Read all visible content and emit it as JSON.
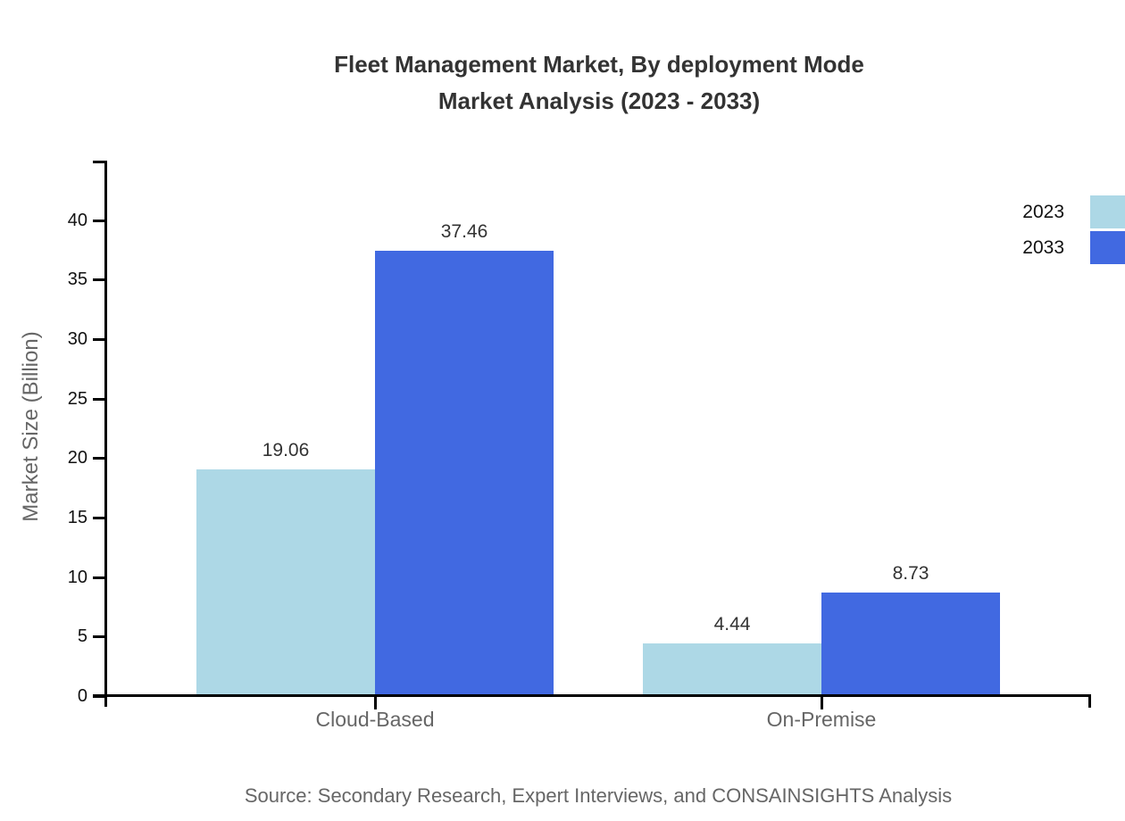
{
  "title": {
    "line1": "Fleet Management Market, By deployment Mode",
    "line2": "Market Analysis (2023 - 2033)"
  },
  "chart_data": {
    "type": "bar",
    "categories": [
      "Cloud-Based",
      "On-Premise"
    ],
    "series": [
      {
        "name": "2023",
        "color": "#ADD8E6",
        "values": [
          19.06,
          4.44
        ],
        "labels": [
          "19.06",
          "4.44"
        ]
      },
      {
        "name": "2033",
        "color": "#4169E1",
        "values": [
          37.46,
          8.73
        ],
        "labels": [
          "37.46",
          "8.73"
        ]
      }
    ],
    "title": "Fleet Management Market, By deployment Mode Market Analysis (2023 - 2033)",
    "xlabel": "",
    "ylabel": "Market Size (Billion)",
    "ylim": [
      0,
      45
    ],
    "yticks": [
      "0",
      "5",
      "10",
      "15",
      "20",
      "25",
      "30",
      "35",
      "40"
    ],
    "grid": false,
    "legend_position": "top-right",
    "value_labels_shown": true
  },
  "source": "Source: Secondary Research, Expert Interviews, and CONSAINSIGHTS Analysis",
  "colors": {
    "series_2023": "#ADD8E6",
    "series_2033": "#4169E1",
    "axis": "#000000",
    "title_text": "#333333",
    "value_label_text": "#333333",
    "category_text": "#666666",
    "source_text": "#666666"
  }
}
